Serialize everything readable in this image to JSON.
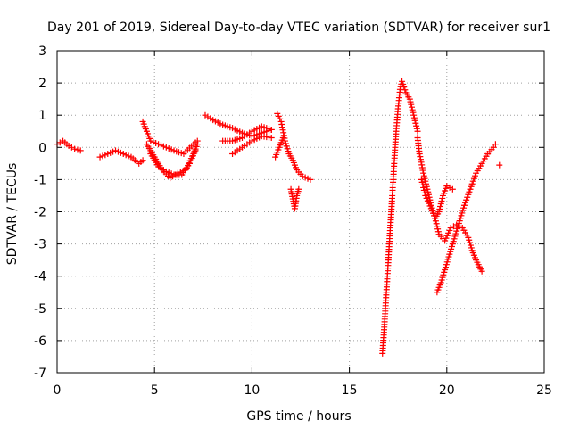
{
  "chart_data": {
    "type": "scatter",
    "title": "Day 201 of 2019, Sidereal Day-to-day VTEC variation (SDTVAR) for receiver sur1",
    "xlabel": "GPS time / hours",
    "ylabel": "SDTVAR / TECUs",
    "xlim": [
      0,
      25
    ],
    "ylim": [
      -7,
      3
    ],
    "xticks": [
      "0",
      "5",
      "10",
      "15",
      "20",
      "25"
    ],
    "yticks": [
      "-7",
      "-6",
      "-5",
      "-4",
      "-3",
      "-2",
      "-1",
      "0",
      "1",
      "2",
      "3"
    ],
    "grid": true,
    "marker": "plus",
    "color": "#ff0000",
    "segments": [
      {
        "name": "track-1",
        "points": [
          [
            0.0,
            0.1
          ],
          [
            0.3,
            0.2
          ],
          [
            0.6,
            0.05
          ],
          [
            0.9,
            -0.05
          ],
          [
            1.2,
            -0.1
          ]
        ]
      },
      {
        "name": "track-2",
        "points": [
          [
            2.2,
            -0.3
          ],
          [
            2.6,
            -0.2
          ],
          [
            3.0,
            -0.1
          ],
          [
            3.4,
            -0.2
          ],
          [
            3.8,
            -0.3
          ],
          [
            4.2,
            -0.5
          ],
          [
            4.4,
            -0.4
          ]
        ]
      },
      {
        "name": "track-3",
        "points": [
          [
            4.4,
            0.8
          ],
          [
            4.6,
            0.5
          ],
          [
            4.8,
            0.2
          ],
          [
            5.2,
            0.1
          ],
          [
            5.6,
            0.0
          ],
          [
            6.0,
            -0.1
          ],
          [
            6.5,
            -0.2
          ],
          [
            7.0,
            0.1
          ],
          [
            7.2,
            0.2
          ]
        ]
      },
      {
        "name": "track-4",
        "points": [
          [
            4.6,
            0.1
          ],
          [
            5.0,
            -0.3
          ],
          [
            5.4,
            -0.7
          ],
          [
            5.8,
            -0.95
          ],
          [
            6.2,
            -0.8
          ],
          [
            6.6,
            -0.7
          ],
          [
            7.0,
            -0.2
          ],
          [
            7.2,
            0.1
          ]
        ]
      },
      {
        "name": "track-5",
        "points": [
          [
            4.8,
            -0.2
          ],
          [
            5.2,
            -0.6
          ],
          [
            5.6,
            -0.75
          ],
          [
            6.0,
            -0.85
          ],
          [
            6.4,
            -0.85
          ],
          [
            6.8,
            -0.5
          ],
          [
            7.1,
            -0.1
          ]
        ]
      },
      {
        "name": "track-6",
        "points": [
          [
            7.6,
            1.0
          ],
          [
            8.0,
            0.85
          ],
          [
            8.5,
            0.7
          ],
          [
            9.0,
            0.6
          ],
          [
            9.5,
            0.45
          ],
          [
            10.0,
            0.35
          ],
          [
            10.5,
            0.45
          ],
          [
            11.0,
            0.55
          ]
        ]
      },
      {
        "name": "track-7",
        "points": [
          [
            8.5,
            0.2
          ],
          [
            9.0,
            0.2
          ],
          [
            9.5,
            0.3
          ],
          [
            10.0,
            0.5
          ],
          [
            10.5,
            0.65
          ],
          [
            11.0,
            0.55
          ]
        ]
      },
      {
        "name": "track-8",
        "points": [
          [
            9.0,
            -0.2
          ],
          [
            9.5,
            0.0
          ],
          [
            10.0,
            0.2
          ],
          [
            10.5,
            0.35
          ],
          [
            11.0,
            0.3
          ]
        ]
      },
      {
        "name": "track-9",
        "points": [
          [
            11.3,
            1.05
          ],
          [
            11.5,
            0.8
          ],
          [
            11.7,
            0.2
          ],
          [
            11.9,
            -0.2
          ],
          [
            12.1,
            -0.4
          ],
          [
            12.3,
            -0.7
          ],
          [
            12.6,
            -0.9
          ],
          [
            13.0,
            -1.0
          ]
        ]
      },
      {
        "name": "track-10",
        "points": [
          [
            11.2,
            -0.3
          ],
          [
            11.4,
            0.0
          ],
          [
            11.6,
            0.3
          ]
        ]
      },
      {
        "name": "track-11",
        "points": [
          [
            12.0,
            -1.3
          ],
          [
            12.1,
            -1.6
          ],
          [
            12.2,
            -1.9
          ],
          [
            12.3,
            -1.5
          ],
          [
            12.4,
            -1.3
          ]
        ]
      },
      {
        "name": "track-12",
        "points": [
          [
            16.7,
            -6.4
          ],
          [
            16.8,
            -5.5
          ],
          [
            16.9,
            -4.5
          ],
          [
            17.0,
            -3.5
          ],
          [
            17.1,
            -2.5
          ],
          [
            17.2,
            -1.5
          ],
          [
            17.3,
            -0.5
          ],
          [
            17.4,
            0.5
          ],
          [
            17.5,
            1.2
          ],
          [
            17.6,
            1.8
          ],
          [
            17.7,
            2.05
          ],
          [
            17.9,
            1.7
          ],
          [
            18.1,
            1.5
          ],
          [
            18.3,
            1.0
          ],
          [
            18.5,
            0.5
          ]
        ]
      },
      {
        "name": "track-13",
        "points": [
          [
            18.5,
            0.3
          ],
          [
            18.6,
            -0.2
          ],
          [
            18.8,
            -0.8
          ],
          [
            19.0,
            -1.3
          ],
          [
            19.2,
            -1.8
          ],
          [
            19.4,
            -2.2
          ],
          [
            19.6,
            -2.7
          ],
          [
            19.9,
            -2.9
          ],
          [
            20.2,
            -2.5
          ],
          [
            20.5,
            -2.4
          ],
          [
            20.8,
            -2.5
          ],
          [
            21.1,
            -2.8
          ],
          [
            21.3,
            -3.2
          ],
          [
            21.5,
            -3.5
          ],
          [
            21.8,
            -3.85
          ]
        ]
      },
      {
        "name": "track-14",
        "points": [
          [
            18.7,
            -1.0
          ],
          [
            18.9,
            -1.5
          ],
          [
            19.2,
            -1.9
          ],
          [
            19.4,
            -2.2
          ],
          [
            19.6,
            -2.0
          ],
          [
            19.8,
            -1.5
          ],
          [
            20.0,
            -1.2
          ],
          [
            20.3,
            -1.3
          ]
        ]
      },
      {
        "name": "track-15",
        "points": [
          [
            19.5,
            -4.5
          ],
          [
            19.7,
            -4.2
          ],
          [
            19.9,
            -3.8
          ],
          [
            20.1,
            -3.4
          ],
          [
            20.3,
            -3.0
          ],
          [
            20.5,
            -2.6
          ],
          [
            20.7,
            -2.2
          ],
          [
            20.9,
            -1.8
          ],
          [
            21.2,
            -1.3
          ],
          [
            21.5,
            -0.8
          ],
          [
            21.8,
            -0.5
          ],
          [
            22.1,
            -0.2
          ],
          [
            22.4,
            0.0
          ],
          [
            22.5,
            0.1
          ]
        ]
      },
      {
        "name": "track-16",
        "points": [
          [
            22.7,
            -0.55
          ]
        ]
      }
    ]
  }
}
